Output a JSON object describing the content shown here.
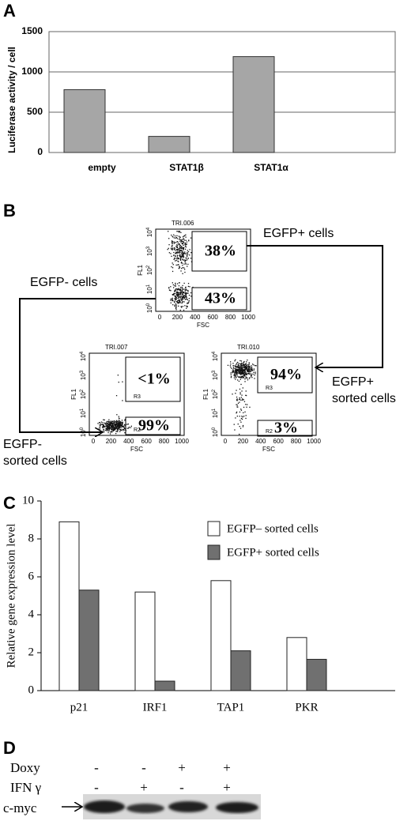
{
  "panel_labels": [
    "A",
    "B",
    "C",
    "D"
  ],
  "chart_data": [
    {
      "type": "bar",
      "y_label": "Luciferase activity / cell",
      "categories": [
        "empty",
        "STAT1β",
        "STAT1α"
      ],
      "values": [
        780,
        200,
        1190
      ],
      "color": "#a6a6a6",
      "ylim": [
        0,
        1500
      ],
      "yticks": [
        0,
        500,
        1000,
        1500
      ],
      "grid": true
    },
    {
      "type": "grouped_bar",
      "y_label": "Relative gene expression level",
      "categories": [
        "p21",
        "IRF1",
        "TAP1",
        "PKR"
      ],
      "series": [
        {
          "name": "EGFP– sorted cells",
          "color": "#ffffff",
          "values": [
            8.9,
            5.2,
            5.8,
            2.8
          ]
        },
        {
          "name": "EGFP+ sorted cells",
          "color": "#707070",
          "values": [
            5.3,
            0.5,
            2.1,
            1.65
          ]
        }
      ],
      "ylim": [
        0,
        10
      ],
      "yticks": [
        0,
        2,
        4,
        6,
        8,
        10
      ],
      "grid": false,
      "legend": "top-right"
    }
  ],
  "flow": {
    "x_label": "FSC",
    "y_label": "FL1",
    "x_ticks": [
      "0",
      "200",
      "400",
      "600",
      "800",
      "1000"
    ],
    "y_tick_base": "10",
    "y_tick_exps": [
      "0",
      "1",
      "2",
      "3",
      "4"
    ],
    "plots": [
      {
        "title": "TRI.006",
        "upper": "38%",
        "lower": "43%"
      },
      {
        "title": "TRI.007",
        "upper": "<1%",
        "lower": "99%",
        "upper_gate": "R3",
        "lower_gate": "R2"
      },
      {
        "title": "TRI.010",
        "upper": "94%",
        "lower": "3%",
        "upper_gate": "R3",
        "lower_gate": "R2"
      }
    ],
    "annotations": {
      "egfp_pos": "EGFP+ cells",
      "egfp_neg": "EGFP- cells",
      "pos_sorted": [
        "EGFP+",
        "sorted cells"
      ],
      "neg_sorted": [
        "EGFP-",
        "sorted cells"
      ]
    }
  },
  "blot": {
    "rows": [
      {
        "label": "Doxy",
        "signs": [
          "-",
          "-",
          "+",
          "+"
        ]
      },
      {
        "label": "IFN γ",
        "signs": [
          "-",
          "+",
          "-",
          "+"
        ]
      }
    ],
    "band_label": "c-myc"
  }
}
